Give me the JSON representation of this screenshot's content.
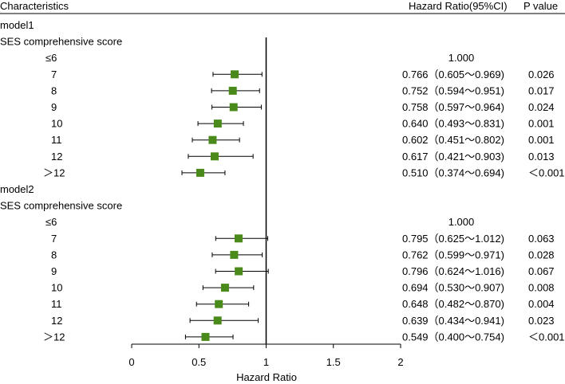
{
  "chart_data": {
    "type": "forest",
    "header": {
      "characteristics": "Characteristics",
      "hazard_ratio": "Hazard Ratio(95%CI)",
      "p_value": "P value"
    },
    "xlabel": "Hazard Ratio",
    "xlim": [
      0,
      2
    ],
    "xticks": [
      "0",
      "0.5",
      "1",
      "1.5",
      "2"
    ],
    "xtick_values": [
      0,
      0.5,
      1,
      1.5,
      2
    ],
    "reference_line": 1,
    "marker_color": "#4a8a1a",
    "groups": [
      {
        "name": "model1",
        "subtitle": "SES comprehensive score",
        "rows": [
          {
            "category": "≤6",
            "reference": "1.000"
          },
          {
            "category": "7",
            "hr": 0.766,
            "lo": 0.605,
            "hi": 0.969,
            "ci_text": "0.766（0.605～0.969)",
            "p": "0.026"
          },
          {
            "category": "8",
            "hr": 0.752,
            "lo": 0.594,
            "hi": 0.951,
            "ci_text": "0.752（0.594～0.951)",
            "p": "0.017"
          },
          {
            "category": "9",
            "hr": 0.758,
            "lo": 0.597,
            "hi": 0.964,
            "ci_text": "0.758（0.597～0.964)",
            "p": "0.024"
          },
          {
            "category": "10",
            "hr": 0.64,
            "lo": 0.493,
            "hi": 0.831,
            "ci_text": "0.640（0.493～0.831)",
            "p": "0.001"
          },
          {
            "category": "11",
            "hr": 0.602,
            "lo": 0.451,
            "hi": 0.802,
            "ci_text": "0.602（0.451～0.802)",
            "p": "0.001"
          },
          {
            "category": "12",
            "hr": 0.617,
            "lo": 0.421,
            "hi": 0.903,
            "ci_text": "0.617（0.421～0.903)",
            "p": "0.013"
          },
          {
            "category": "＞12",
            "hr": 0.51,
            "lo": 0.374,
            "hi": 0.694,
            "ci_text": "0.510（0.374～0.694)",
            "p": "＜0.001"
          }
        ]
      },
      {
        "name": "model2",
        "subtitle": "SES comprehensive score",
        "rows": [
          {
            "category": "≤6",
            "reference": "1.000"
          },
          {
            "category": "7",
            "hr": 0.795,
            "lo": 0.625,
            "hi": 1.012,
            "ci_text": "0.795（0.625～1.012)",
            "p": "0.063"
          },
          {
            "category": "8",
            "hr": 0.762,
            "lo": 0.599,
            "hi": 0.971,
            "ci_text": "0.762（0.599～0.971)",
            "p": "0.028"
          },
          {
            "category": "9",
            "hr": 0.796,
            "lo": 0.624,
            "hi": 1.016,
            "ci_text": "0.796（0.624～1.016)",
            "p": "0.067"
          },
          {
            "category": "10",
            "hr": 0.694,
            "lo": 0.53,
            "hi": 0.907,
            "ci_text": "0.694（0.530～0.907)",
            "p": "0.008"
          },
          {
            "category": "11",
            "hr": 0.648,
            "lo": 0.482,
            "hi": 0.87,
            "ci_text": "0.648（0.482～0.870)",
            "p": "0.004"
          },
          {
            "category": "12",
            "hr": 0.639,
            "lo": 0.434,
            "hi": 0.941,
            "ci_text": "0.639（0.434～0.941)",
            "p": "0.023"
          },
          {
            "category": "＞12",
            "hr": 0.549,
            "lo": 0.4,
            "hi": 0.754,
            "ci_text": "0.549（0.400～0.754)",
            "p": "＜0.001"
          }
        ]
      }
    ]
  }
}
